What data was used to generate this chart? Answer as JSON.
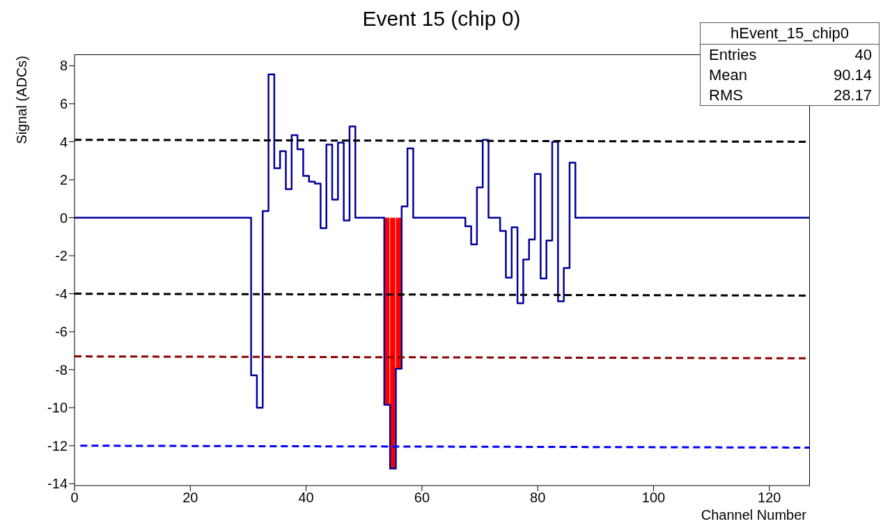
{
  "chart_data": {
    "type": "step",
    "title": "Event 15 (chip 0)",
    "xlabel": "Channel Number",
    "ylabel": "Signal (ADCs)",
    "annotations": [
      "hEvent_15_chip0",
      "Entries",
      "40",
      "Mean",
      "90.14",
      "RMS",
      "28.17"
    ],
    "xlim": [
      0,
      127
    ],
    "xticks": [
      0,
      20,
      40,
      60,
      80,
      100,
      120
    ],
    "ylim": [
      -14.1,
      8.6
    ],
    "yticks": [
      -14,
      -12,
      -10,
      -8,
      -6,
      -4,
      -2,
      0,
      2,
      4,
      6,
      8
    ],
    "grid": false,
    "legend": false,
    "marker": "none",
    "series": [
      {
        "color": "#000099",
        "x": [
          0,
          30,
          31,
          32,
          33,
          34,
          35,
          36,
          37,
          38,
          39,
          40,
          41,
          42,
          43,
          44,
          45,
          46,
          47,
          48,
          49,
          53,
          54,
          55,
          56,
          57,
          58,
          59,
          67,
          68,
          69,
          70,
          71,
          72,
          73,
          74,
          75,
          76,
          77,
          78,
          79,
          80,
          81,
          82,
          83,
          84,
          85,
          86,
          87,
          127
        ],
        "values": [
          0,
          0,
          -8.3,
          -10.0,
          0.35,
          7.55,
          2.6,
          3.5,
          1.5,
          4.35,
          3.6,
          2.2,
          1.9,
          1.8,
          -0.55,
          3.85,
          0.95,
          3.95,
          -0.15,
          4.8,
          0,
          0,
          -9.85,
          -13.2,
          -7.95,
          0.6,
          3.65,
          0,
          0,
          -0.45,
          -1.4,
          1.6,
          4.1,
          0,
          0,
          -0.7,
          -3.15,
          -0.5,
          -4.5,
          -2.2,
          -1.15,
          2.3,
          -3.2,
          -1.2,
          4.0,
          -4.4,
          -2.65,
          2.9,
          0,
          0
        ]
      },
      {
        "type": "bar",
        "color": "#ff0000",
        "x": [
          54,
          55,
          56
        ],
        "values": [
          -9.85,
          -13.2,
          -7.95
        ]
      },
      {
        "type": "line",
        "color": "#000000",
        "line_style": "dashed",
        "x": [
          0,
          127
        ],
        "values": [
          4.1,
          4.0
        ]
      },
      {
        "type": "line",
        "color": "#000000",
        "line_style": "dashed",
        "x": [
          0,
          127
        ],
        "values": [
          -4.0,
          -4.1
        ]
      },
      {
        "type": "line",
        "color": "#8b0000",
        "line_style": "dashed",
        "x": [
          0,
          127
        ],
        "values": [
          -7.3,
          -7.4
        ]
      },
      {
        "type": "line",
        "color": "#0000ff",
        "line_style": "dashed",
        "x": [
          1,
          127
        ],
        "values": [
          -12.0,
          -12.1
        ]
      }
    ]
  }
}
